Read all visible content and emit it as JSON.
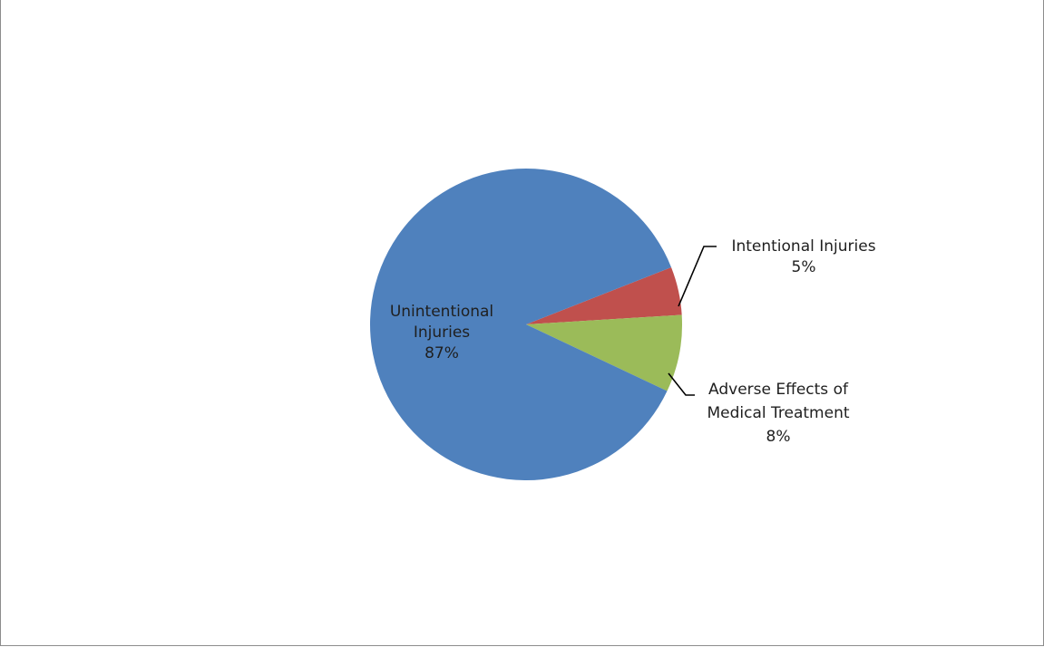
{
  "chart_data": {
    "type": "pie",
    "title": "",
    "categories": [
      "Unintentional Injuries",
      "Intentional Injuries",
      "Adverse Effects of Medical Treatment"
    ],
    "values": [
      87,
      5,
      8
    ],
    "value_unit": "%",
    "colors": [
      "#4f81bd",
      "#c0504d",
      "#9bbb59"
    ],
    "labels": [
      {
        "lines": [
          "Unintentional",
          "Injuries",
          "87%"
        ]
      },
      {
        "lines": [
          "Intentional Injuries",
          "5%"
        ]
      },
      {
        "lines": [
          "Adverse Effects of",
          "Medical Treatment",
          "8%"
        ]
      }
    ],
    "legend": "none",
    "leader_lines": true
  },
  "header_strip": {
    "text": ""
  }
}
